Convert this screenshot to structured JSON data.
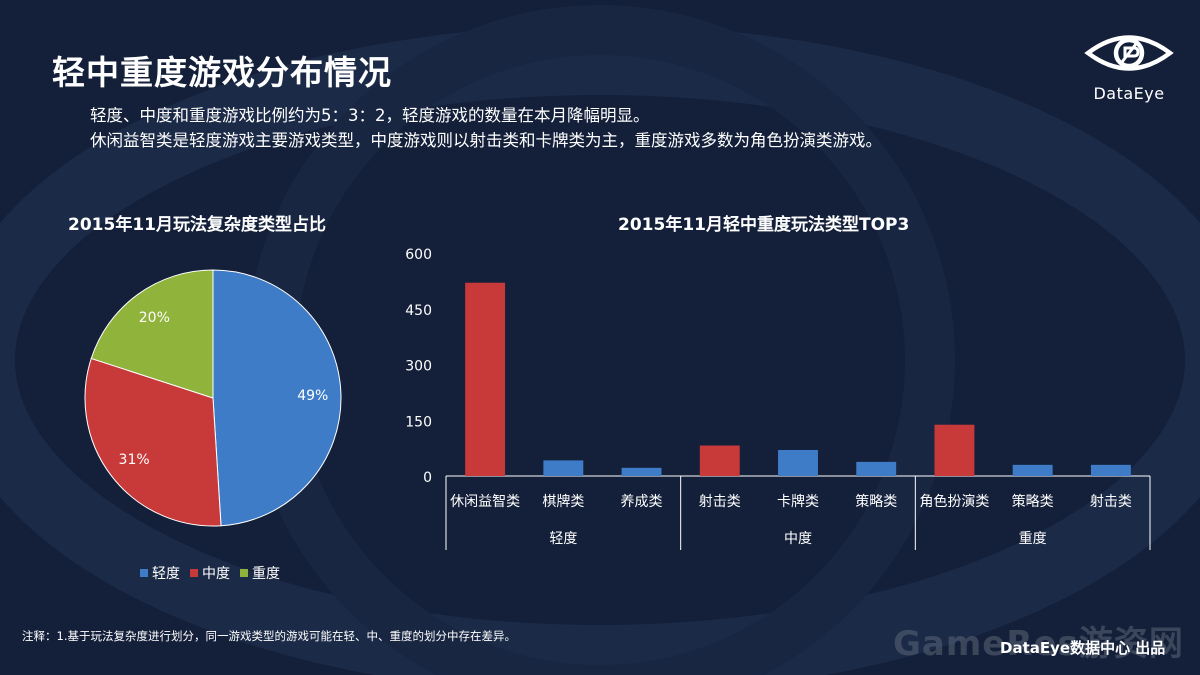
{
  "page": {
    "title": "轻中重度游戏分布情况",
    "desc_line1": "轻度、中度和重度游戏比例约为5：3：2，轻度游戏的数量在本月降幅明显。",
    "desc_line2": "休闲益智类是轻度游戏主要游戏类型，中度游戏则以射击类和卡牌类为主，重度游戏多数为角色扮演类游戏。",
    "logo_text": "DataEye",
    "note": "注释：1.基于玩法复杂度进行划分，同一游戏类型的游戏可能在轻、中、重度的划分中存在差异。",
    "watermark": "GameRes游资网",
    "footer": "DataEye数据中心 出品"
  },
  "colors": {
    "background": "#14203a",
    "light": "#3f7cc8",
    "medium": "#c83a3a",
    "heavy": "#8fb33b"
  },
  "chart_data": [
    {
      "type": "pie",
      "title": "2015年11月玩法复杂度类型占比",
      "slices": [
        {
          "name": "轻度",
          "value": 49,
          "label": "49%"
        },
        {
          "name": "中度",
          "value": 31,
          "label": "31%"
        },
        {
          "name": "重度",
          "value": 20,
          "label": "20%"
        }
      ],
      "legend": "bottom"
    },
    {
      "type": "bar",
      "title": "2015年11月轻中重度玩法类型TOP3",
      "ylim": [
        0,
        600
      ],
      "yticks": [
        0,
        150,
        300,
        450,
        600
      ],
      "groups": [
        {
          "name": "轻度",
          "categories": [
            "休闲益智类",
            "棋牌类",
            "养成类"
          ],
          "values": [
            520,
            42,
            22
          ]
        },
        {
          "name": "中度",
          "categories": [
            "射击类",
            "卡牌类",
            "策略类"
          ],
          "values": [
            82,
            70,
            38
          ]
        },
        {
          "name": "重度",
          "categories": [
            "角色扮演类",
            "策略类",
            "射击类"
          ],
          "values": [
            138,
            30,
            30
          ]
        }
      ],
      "highlight_top1": true,
      "grid": false
    }
  ]
}
